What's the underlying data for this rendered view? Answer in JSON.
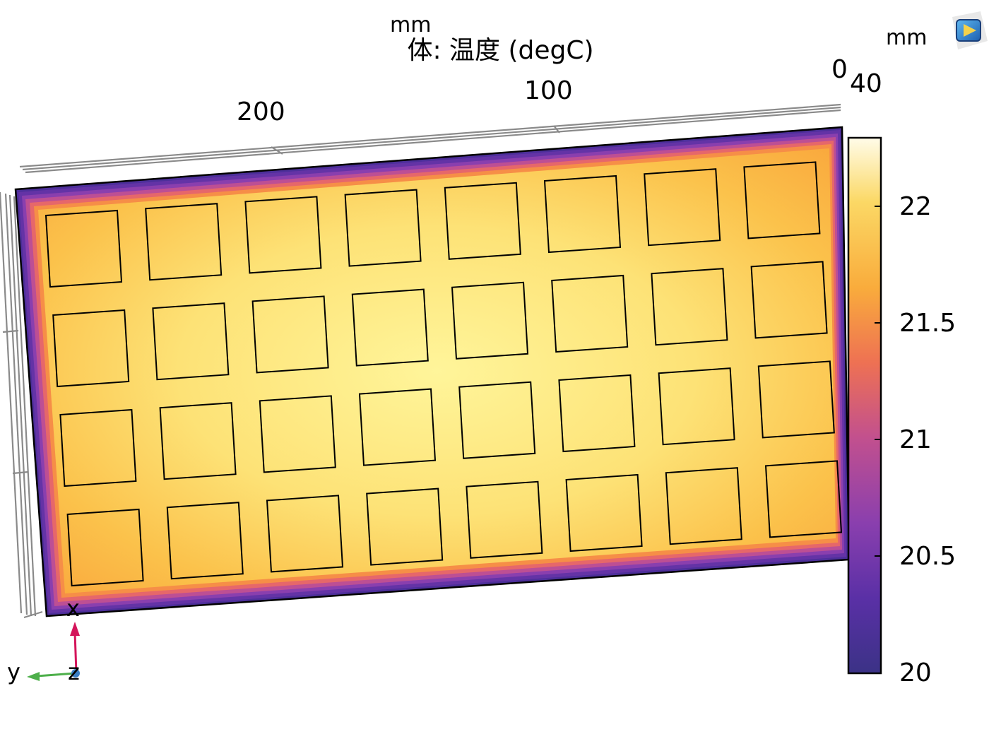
{
  "title": "体: 温度 (degC)",
  "axis_units": {
    "top": "mm",
    "right": "mm"
  },
  "top_axis_ticks": [
    "200",
    "100",
    "0"
  ],
  "side_axis_tick": "40",
  "colorbar": {
    "ticks": [
      "22",
      "21.5",
      "21",
      "20.5",
      "20"
    ],
    "range": [
      19.93,
      22.28
    ],
    "colormap": "plasma",
    "stops": [
      "#3b3286",
      "#5a30a6",
      "#8a3fae",
      "#c2508e",
      "#ee7153",
      "#f9ac3c",
      "#fbd865",
      "#fffce9"
    ]
  },
  "triad": {
    "x": "x",
    "y": "y",
    "z": "z",
    "x_color": "#d4145a",
    "y_color": "#4daf4a",
    "z_color": "#3b7fc4"
  },
  "plate": {
    "grid_rows": 4,
    "grid_cols": 8
  },
  "icons": {
    "view": "view-cube-icon"
  }
}
